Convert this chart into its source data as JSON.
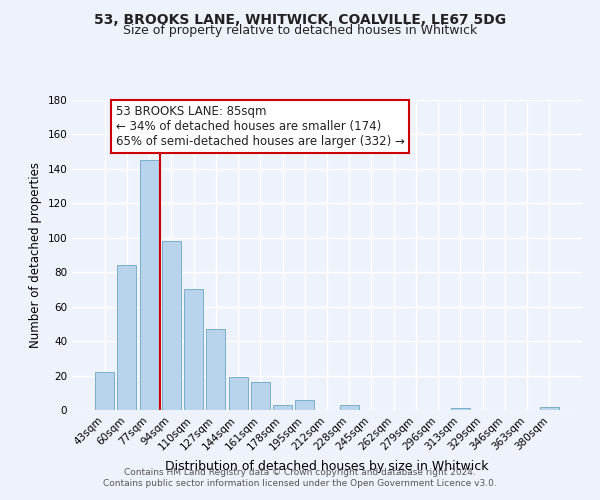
{
  "title1": "53, BROOKS LANE, WHITWICK, COALVILLE, LE67 5DG",
  "title2": "Size of property relative to detached houses in Whitwick",
  "xlabel": "Distribution of detached houses by size in Whitwick",
  "ylabel": "Number of detached properties",
  "bar_labels": [
    "43sqm",
    "60sqm",
    "77sqm",
    "94sqm",
    "110sqm",
    "127sqm",
    "144sqm",
    "161sqm",
    "178sqm",
    "195sqm",
    "212sqm",
    "228sqm",
    "245sqm",
    "262sqm",
    "279sqm",
    "296sqm",
    "313sqm",
    "329sqm",
    "346sqm",
    "363sqm",
    "380sqm"
  ],
  "bar_values": [
    22,
    84,
    145,
    98,
    70,
    47,
    19,
    16,
    3,
    6,
    0,
    3,
    0,
    0,
    0,
    0,
    1,
    0,
    0,
    0,
    2
  ],
  "bar_color": "#b8d4ec",
  "bar_edge_color": "#7aaec8",
  "marker_color": "#cc0000",
  "annotation_line1": "53 BROOKS LANE: 85sqm",
  "annotation_line2": "← 34% of detached houses are smaller (174)",
  "annotation_line3": "65% of semi-detached houses are larger (332) →",
  "annotation_box_color": "#ffffff",
  "annotation_border_color": "#cc0000",
  "ylim": [
    0,
    180
  ],
  "yticks": [
    0,
    20,
    40,
    60,
    80,
    100,
    120,
    140,
    160,
    180
  ],
  "footer_text": "Contains HM Land Registry data © Crown copyright and database right 2024.\nContains public sector information licensed under the Open Government Licence v3.0.",
  "bg_color": "#eef2fb",
  "grid_color": "#ffffff",
  "title1_fontsize": 10,
  "title2_fontsize": 9
}
